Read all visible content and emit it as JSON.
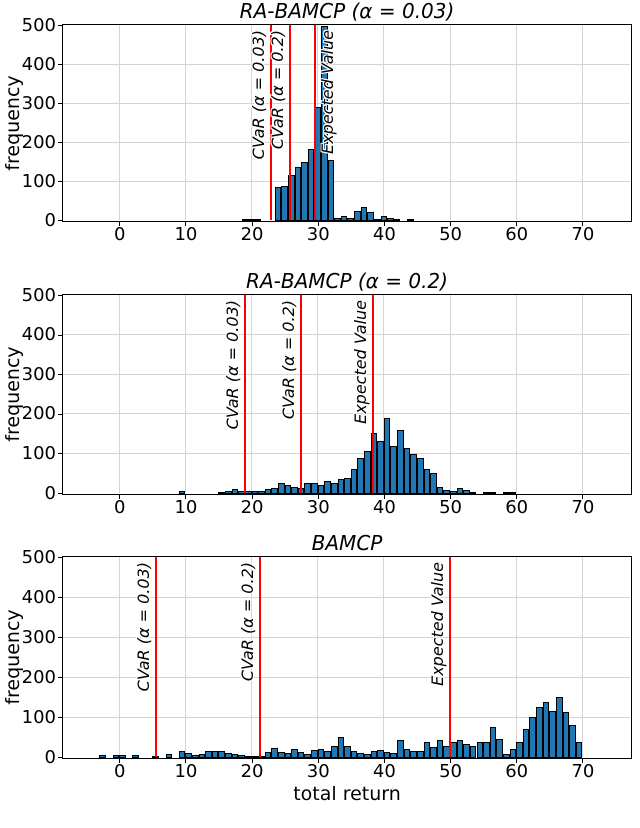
{
  "figure": {
    "background": "#ffffff",
    "bar_fill": "#2077b4",
    "bar_edge": "#000000",
    "vline_color": "#ff0000",
    "grid_color": "#d4d4d4",
    "spine_color": "#000000",
    "xlabel": "total return",
    "ylabel": "frequency",
    "x_ticks": [
      0,
      10,
      20,
      30,
      40,
      50,
      60,
      70
    ],
    "y_ticks": [
      0,
      100,
      200,
      300,
      400,
      500
    ],
    "xlim": [
      -8.5,
      77.2
    ],
    "ylim": [
      0,
      500
    ],
    "grid": true,
    "legend": "none"
  },
  "chart_data": [
    {
      "type": "bar",
      "subtype": "histogram",
      "title": "RA-BAMCP (α = 0.03)",
      "ylabel": "frequency",
      "xlim": [
        -8.5,
        77.2
      ],
      "ylim": [
        0,
        500
      ],
      "bin_start": 18.5,
      "bin_width": 1,
      "values": [
        3,
        3,
        2,
        0,
        0,
        88,
        90,
        117,
        138,
        152,
        185,
        293,
        520,
        157,
        9,
        13,
        9,
        26,
        37,
        22,
        5,
        13,
        9,
        3,
        0,
        3
      ],
      "vlines": [
        {
          "x": 23.0,
          "label": "CVaR (α = 0.03)",
          "label_side": "left"
        },
        {
          "x": 25.8,
          "label": "CVaR (α = 0.2)",
          "label_side": "left"
        },
        {
          "x": 29.6,
          "label": "Expected Value",
          "label_side": "right"
        }
      ]
    },
    {
      "type": "bar",
      "subtype": "histogram",
      "title": "RA-BAMCP (α = 0.2)",
      "ylabel": "frequency",
      "xlim": [
        -8.5,
        77.2
      ],
      "ylim": [
        0,
        500
      ],
      "bin_start": 9,
      "bin_width": 1,
      "values": [
        7,
        0,
        0,
        0,
        0,
        0,
        4,
        7,
        12,
        7,
        7,
        8,
        7,
        12,
        14,
        27,
        22,
        18,
        14,
        29,
        27,
        23,
        33,
        29,
        37,
        41,
        62,
        91,
        108,
        154,
        133,
        191,
        120,
        162,
        116,
        100,
        90,
        62,
        54,
        18,
        11,
        8,
        14,
        11,
        4,
        0,
        3,
        3,
        0,
        2,
        2
      ],
      "vlines": [
        {
          "x": 19.0,
          "label": "CVaR (α = 0.03)",
          "label_side": "left"
        },
        {
          "x": 27.5,
          "label": "CVaR (α = 0.2)",
          "label_side": "left"
        },
        {
          "x": 38.4,
          "label": "Expected Value",
          "label_side": "left"
        }
      ]
    },
    {
      "type": "bar",
      "subtype": "histogram",
      "title": "BAMCP",
      "ylabel": "frequency",
      "xlabel": "total return",
      "xlim": [
        -8.5,
        77.2
      ],
      "ylim": [
        0,
        500
      ],
      "bin_start": -3,
      "bin_width": 1,
      "values": [
        8,
        0,
        8,
        8,
        0,
        8,
        0,
        0,
        5,
        0,
        10,
        0,
        17,
        12,
        8,
        10,
        17,
        18,
        17,
        12,
        10,
        7,
        5,
        5,
        3,
        15,
        24,
        16,
        13,
        23,
        14,
        10,
        21,
        23,
        17,
        29,
        52,
        31,
        18,
        13,
        10,
        18,
        21,
        16,
        13,
        44,
        23,
        18,
        18,
        40,
        27,
        46,
        29,
        41,
        44,
        35,
        29,
        40,
        40,
        77,
        48,
        10,
        23,
        40,
        73,
        103,
        128,
        139,
        117,
        153,
        115,
        82,
        40
      ],
      "vlines": [
        {
          "x": 5.6,
          "label": "CVaR (α = 0.03)",
          "label_side": "left"
        },
        {
          "x": 21.3,
          "label": "CVaR (α = 0.2)",
          "label_side": "left"
        },
        {
          "x": 50.0,
          "label": "Expected Value",
          "label_side": "left"
        }
      ]
    }
  ]
}
